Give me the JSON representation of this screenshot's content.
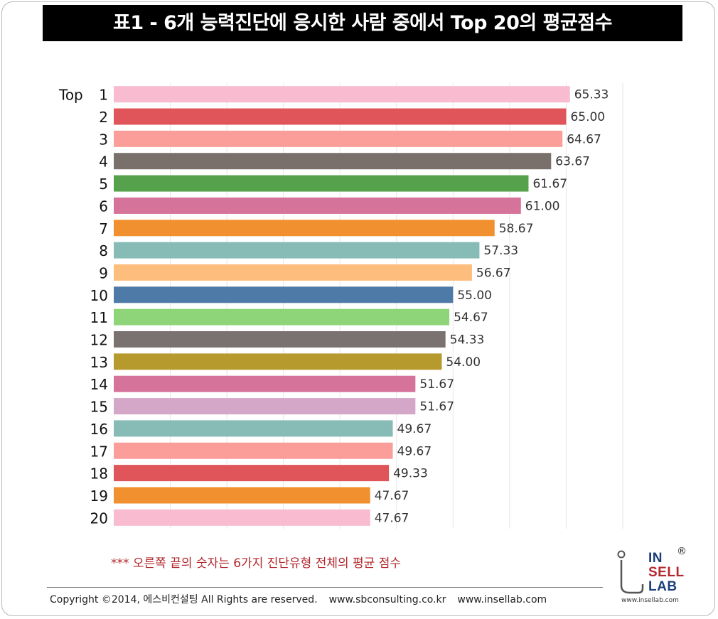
{
  "page": {
    "title": "표1 - 6개 능력진단에 응시한 사람 중에서 Top 20의 평균점수",
    "note": "*** 오른쪽 끝의 숫자는 6가지 진단유형 전체의 평균 점수",
    "copyright": "Copyright ©2014, 에스비컨설팅 All Rights are reserved.",
    "site1": "www.sbconsulting.co.kr",
    "site2": "www.insellab.com"
  },
  "logo": {
    "line1": "IN",
    "line2": "SELL",
    "line3": "LAB",
    "registered": "®",
    "site": "www.insellab.com",
    "color_dark": "#1a3f7a",
    "color_red": "#b3282d"
  },
  "chart_data": {
    "type": "bar",
    "orientation": "horizontal",
    "title": "표1 - 6개 능력진단에 응시한 사람 중에서 Top 20의 평균점수",
    "category_prefix": "Top",
    "categories": [
      "1",
      "2",
      "3",
      "4",
      "5",
      "6",
      "7",
      "8",
      "9",
      "10",
      "11",
      "12",
      "13",
      "14",
      "15",
      "16",
      "17",
      "18",
      "19",
      "20"
    ],
    "values": [
      65.33,
      65.0,
      64.67,
      63.67,
      61.67,
      61.0,
      58.67,
      57.33,
      56.67,
      55.0,
      54.67,
      54.33,
      54.0,
      51.67,
      51.67,
      49.67,
      49.67,
      49.33,
      47.67,
      47.67
    ],
    "value_labels": [
      "65.33",
      "65.00",
      "64.67",
      "63.67",
      "61.67",
      "61.00",
      "58.67",
      "57.33",
      "56.67",
      "55.00",
      "54.67",
      "54.33",
      "54.00",
      "51.67",
      "51.67",
      "49.67",
      "49.67",
      "49.33",
      "47.67",
      "47.67"
    ],
    "colors": [
      "#f8bbd0",
      "#e0555a",
      "#fb9e9a",
      "#796f6b",
      "#56a24c",
      "#d6739a",
      "#f1902f",
      "#86bcb5",
      "#fdbe7d",
      "#4e7aa8",
      "#8ed479",
      "#7a7270",
      "#b69a2d",
      "#d6739a",
      "#d4a6c8",
      "#86bcb5",
      "#fb9e9a",
      "#e0555a",
      "#f1902f",
      "#f8bbd0"
    ],
    "xlim": [
      25,
      70
    ],
    "grid": true,
    "xlabel": "",
    "ylabel": "",
    "legend": "none"
  }
}
